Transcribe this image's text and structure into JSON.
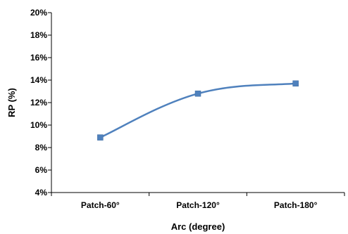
{
  "chart_data": {
    "type": "line",
    "title": "",
    "xlabel": "Arc (degree)",
    "ylabel": "RP (%)",
    "categories": [
      "Patch-60°",
      "Patch-120°",
      "Patch-180°"
    ],
    "series": [
      {
        "values": [
          8.9,
          12.8,
          13.7
        ],
        "color": "#4f81bd",
        "marker": "square",
        "smooth": true
      }
    ],
    "ylim": [
      4,
      20
    ],
    "yticks": [
      4,
      6,
      8,
      10,
      12,
      14,
      16,
      18,
      20
    ],
    "ytick_labels": [
      "4%",
      "6%",
      "8%",
      "10%",
      "12%",
      "14%",
      "16%",
      "18%",
      "20%"
    ],
    "grid": false,
    "legend": "none"
  }
}
